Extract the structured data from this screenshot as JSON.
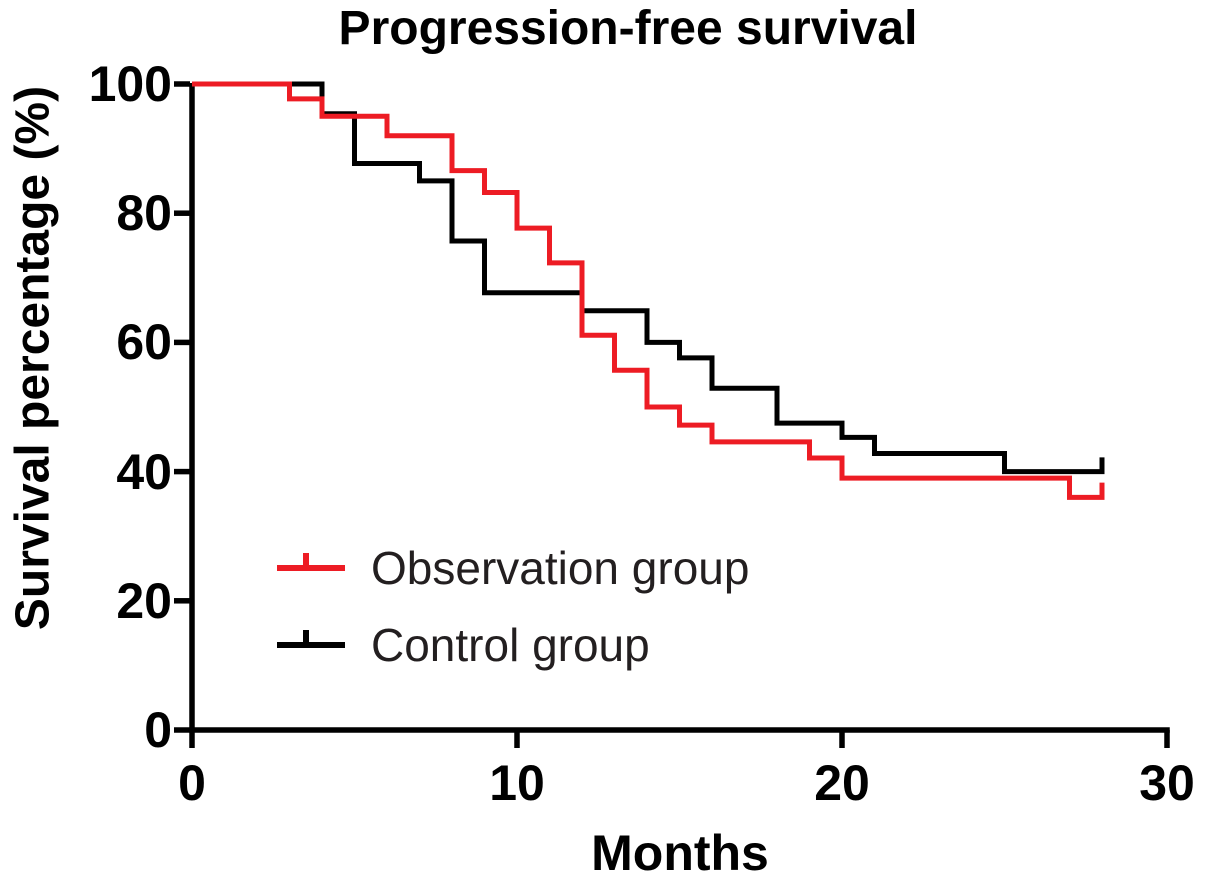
{
  "chart_data": {
    "type": "line",
    "variant": "kaplan-meier-step",
    "title": "Progression-free survival",
    "xlabel": "Months",
    "ylabel": "Survival percentage (%)",
    "xlim": [
      0,
      30
    ],
    "ylim": [
      0,
      100
    ],
    "xticks": [
      0,
      10,
      20,
      30
    ],
    "xtick_labels": [
      "0",
      "10",
      "20",
      "30"
    ],
    "yticks": [
      100,
      80,
      60,
      40,
      20,
      0
    ],
    "ytick_labels": [
      "100",
      "80",
      "60",
      "40",
      "20",
      "0"
    ],
    "grid": false,
    "legend_position": "inside-lower-left",
    "axis_color": "#000000",
    "background_color": "#ffffff",
    "series": [
      {
        "name": "Observation group",
        "color": "#ed1c24",
        "line_width": 5,
        "censor_tick_at_end_month": 28,
        "step_points": [
          [
            0,
            100
          ],
          [
            3,
            100
          ],
          [
            3,
            97.7
          ],
          [
            4,
            97.7
          ],
          [
            4,
            95.0
          ],
          [
            6,
            95.0
          ],
          [
            6,
            92.0
          ],
          [
            8,
            92.0
          ],
          [
            8,
            86.6
          ],
          [
            9,
            86.6
          ],
          [
            9,
            83.2
          ],
          [
            10,
            83.2
          ],
          [
            10,
            77.7
          ],
          [
            11,
            77.7
          ],
          [
            11,
            72.3
          ],
          [
            12,
            72.3
          ],
          [
            12,
            61.1
          ],
          [
            13,
            61.1
          ],
          [
            13,
            55.7
          ],
          [
            14,
            55.7
          ],
          [
            14,
            50.0
          ],
          [
            15,
            50.0
          ],
          [
            15,
            47.2
          ],
          [
            16,
            47.2
          ],
          [
            16,
            44.6
          ],
          [
            19,
            44.6
          ],
          [
            19,
            42.1
          ],
          [
            20,
            42.1
          ],
          [
            20,
            39.0
          ],
          [
            27,
            39.0
          ],
          [
            27,
            36.0
          ],
          [
            28,
            36.0
          ],
          [
            28,
            38.3
          ]
        ]
      },
      {
        "name": "Control group",
        "color": "#000000",
        "line_width": 5,
        "censor_tick_at_end_month": 28,
        "step_points": [
          [
            0,
            100
          ],
          [
            4,
            100
          ],
          [
            4,
            95.4
          ],
          [
            5,
            95.4
          ],
          [
            5,
            87.7
          ],
          [
            7,
            87.7
          ],
          [
            7,
            85.0
          ],
          [
            8,
            85.0
          ],
          [
            8,
            75.7
          ],
          [
            9,
            75.7
          ],
          [
            9,
            67.7
          ],
          [
            12,
            67.7
          ],
          [
            12,
            64.9
          ],
          [
            14,
            64.9
          ],
          [
            14,
            60.0
          ],
          [
            15,
            60.0
          ],
          [
            15,
            57.6
          ],
          [
            16,
            57.6
          ],
          [
            16,
            52.9
          ],
          [
            18,
            52.9
          ],
          [
            18,
            47.5
          ],
          [
            20,
            47.5
          ],
          [
            20,
            45.3
          ],
          [
            21,
            45.3
          ],
          [
            21,
            42.8
          ],
          [
            25,
            42.8
          ],
          [
            25,
            40.0
          ],
          [
            28,
            40.0
          ],
          [
            28,
            42.2
          ]
        ]
      }
    ]
  }
}
